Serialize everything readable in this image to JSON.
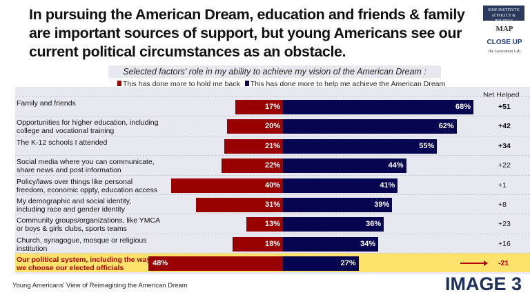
{
  "title": "In pursuing the American Dream, education and friends & family are important sources of support, but young Americans see our current political circumstances as an obstacle.",
  "logos": [
    "SINE INSTITUTE of POLICY & POLITICS",
    "MAP",
    "CLOSE UP",
    "the Generation Lab"
  ],
  "footer": "Young Americans' View of Reimagining the American Dream",
  "badge": "IMAGE 3",
  "chart_data": {
    "type": "bar",
    "title": "Selected factors' role in my ability to achieve my vision of the American Dream :",
    "net_header": "Net Helped",
    "colors": {
      "held_back": "#990000",
      "helped": "#050550",
      "highlight": "#fde36b"
    },
    "categories": [
      "Family and friends",
      "Opportunities for higher education, including college and vocational training",
      "The K-12 schools I attended",
      "Social media where you can communicate, share news and post information",
      "Policy/laws over things like personal freedom, economic oppty, education access",
      "My demographic and social identity, including race and gender identity",
      "Community groups/organizations, like YMCA or boys & girls clubs, sports teams",
      "Church, synagogue, mosque or religious institution",
      "Our political system, including the way we choose our elected officials"
    ],
    "series": [
      {
        "name": "This has done more to hold me back",
        "values": [
          17,
          20,
          21,
          22,
          40,
          31,
          13,
          18,
          48
        ]
      },
      {
        "name": "This has done more to help me achieve the American Dream",
        "values": [
          68,
          62,
          55,
          44,
          41,
          39,
          36,
          34,
          27
        ]
      }
    ],
    "net": [
      "+51",
      "+42",
      "+34",
      "+22",
      "+1",
      "+8",
      "+23",
      "+16",
      "-21"
    ],
    "net_bold": [
      true,
      true,
      true,
      false,
      false,
      false,
      false,
      false,
      true
    ],
    "highlighted_index": 8
  }
}
